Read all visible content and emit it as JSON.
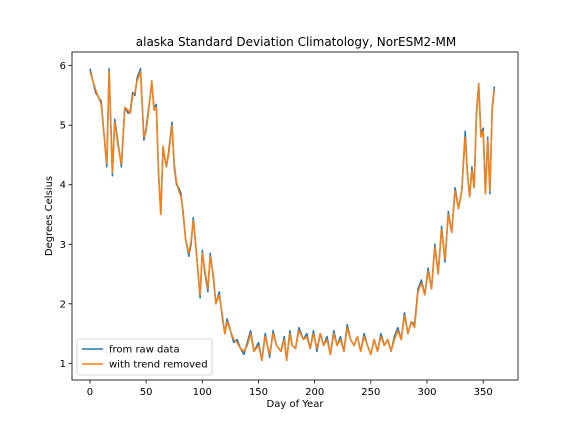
{
  "chart_data": {
    "type": "line",
    "title": "alaska Standard Deviation Climatology, NorESM2-MM",
    "xlabel": "Day of Year",
    "ylabel": "Degrees Celsius",
    "xlim": [
      -16,
      381
    ],
    "ylim": [
      0.72,
      6.23
    ],
    "xticks": [
      0,
      50,
      100,
      150,
      200,
      250,
      300,
      350
    ],
    "yticks": [
      1,
      2,
      3,
      4,
      5,
      6
    ],
    "grid": false,
    "legend_position": "lower-left",
    "x_sample": [
      0,
      5,
      10,
      15,
      17,
      20,
      22,
      25,
      28,
      31,
      34,
      36,
      38,
      40,
      42,
      45,
      48,
      50,
      52,
      55,
      57,
      59,
      61,
      63,
      65,
      68,
      70,
      73,
      75,
      77,
      79,
      81,
      83,
      85,
      88,
      90,
      92,
      95,
      98,
      100,
      102,
      105,
      107,
      110,
      112,
      115,
      118,
      120,
      122,
      125,
      128,
      131,
      134,
      137,
      140,
      143,
      146,
      150,
      153,
      156,
      160,
      163,
      166,
      170,
      173,
      175,
      178,
      180,
      183,
      186,
      190,
      193,
      196,
      199,
      202,
      205,
      208,
      211,
      214,
      217,
      220,
      223,
      226,
      229,
      232,
      235,
      238,
      241,
      244,
      247,
      250,
      253,
      256,
      259,
      262,
      265,
      268,
      271,
      274,
      277,
      280,
      283,
      286,
      289,
      292,
      295,
      298,
      301,
      304,
      307,
      310,
      313,
      316,
      319,
      322,
      325,
      328,
      331,
      334,
      336,
      338,
      340,
      342,
      344,
      346,
      348,
      350,
      352,
      354,
      356,
      358,
      360,
      362,
      365
    ],
    "series": [
      {
        "name": "from raw data",
        "color": "#1f77b4",
        "values": [
          5.95,
          5.55,
          5.4,
          4.3,
          5.95,
          4.15,
          5.1,
          4.7,
          4.3,
          5.3,
          5.2,
          5.25,
          5.55,
          5.5,
          5.8,
          5.95,
          4.75,
          4.95,
          5.25,
          5.7,
          5.3,
          5.35,
          4.2,
          3.5,
          4.6,
          4.3,
          4.55,
          5.05,
          4.3,
          4.0,
          3.95,
          3.85,
          3.5,
          3.1,
          2.8,
          3.0,
          3.45,
          2.8,
          2.1,
          2.9,
          2.55,
          2.2,
          2.85,
          2.4,
          2.0,
          2.2,
          1.75,
          1.5,
          1.75,
          1.55,
          1.35,
          1.4,
          1.25,
          1.15,
          1.35,
          1.55,
          1.2,
          1.35,
          1.05,
          1.5,
          1.1,
          1.55,
          1.3,
          1.2,
          1.45,
          1.05,
          1.55,
          1.3,
          1.25,
          1.6,
          1.4,
          1.5,
          1.25,
          1.55,
          1.2,
          1.5,
          1.3,
          1.45,
          1.15,
          1.55,
          1.3,
          1.45,
          1.2,
          1.65,
          1.4,
          1.3,
          1.45,
          1.2,
          1.5,
          1.3,
          1.15,
          1.4,
          1.2,
          1.5,
          1.3,
          1.4,
          1.2,
          1.45,
          1.6,
          1.4,
          1.85,
          1.5,
          1.7,
          1.65,
          2.25,
          2.4,
          2.15,
          2.6,
          2.25,
          3.0,
          2.5,
          3.3,
          2.7,
          3.55,
          3.2,
          3.95,
          3.6,
          3.9,
          4.9,
          4.2,
          3.8,
          4.3,
          3.95,
          5.2,
          5.7,
          4.85,
          4.95,
          3.85,
          4.8,
          3.85,
          5.3,
          5.65
        ]
      },
      {
        "name": "with trend removed",
        "color": "#ff7f0e",
        "values": [
          5.9,
          5.6,
          5.35,
          4.35,
          5.9,
          4.2,
          5.05,
          4.65,
          4.35,
          5.3,
          5.25,
          5.2,
          5.5,
          5.55,
          5.75,
          5.9,
          4.8,
          4.9,
          5.2,
          5.75,
          5.25,
          5.3,
          4.25,
          3.5,
          4.65,
          4.3,
          4.5,
          5.0,
          4.35,
          4.05,
          3.9,
          3.8,
          3.55,
          3.1,
          2.85,
          3.05,
          3.4,
          2.8,
          2.15,
          2.85,
          2.6,
          2.25,
          2.8,
          2.45,
          2.0,
          2.15,
          1.8,
          1.5,
          1.7,
          1.55,
          1.4,
          1.35,
          1.25,
          1.2,
          1.3,
          1.5,
          1.2,
          1.3,
          1.05,
          1.45,
          1.15,
          1.5,
          1.3,
          1.2,
          1.4,
          1.05,
          1.5,
          1.3,
          1.25,
          1.55,
          1.4,
          1.45,
          1.25,
          1.5,
          1.25,
          1.5,
          1.3,
          1.4,
          1.15,
          1.5,
          1.3,
          1.4,
          1.2,
          1.6,
          1.4,
          1.3,
          1.45,
          1.2,
          1.45,
          1.3,
          1.15,
          1.4,
          1.2,
          1.45,
          1.3,
          1.4,
          1.2,
          1.4,
          1.55,
          1.4,
          1.8,
          1.5,
          1.7,
          1.6,
          2.2,
          2.35,
          2.15,
          2.55,
          2.25,
          2.95,
          2.5,
          3.25,
          2.75,
          3.5,
          3.2,
          3.9,
          3.6,
          3.9,
          4.8,
          4.2,
          3.8,
          4.25,
          3.95,
          5.15,
          5.7,
          4.8,
          4.9,
          3.85,
          4.75,
          3.9,
          5.25,
          5.6
        ]
      }
    ]
  }
}
